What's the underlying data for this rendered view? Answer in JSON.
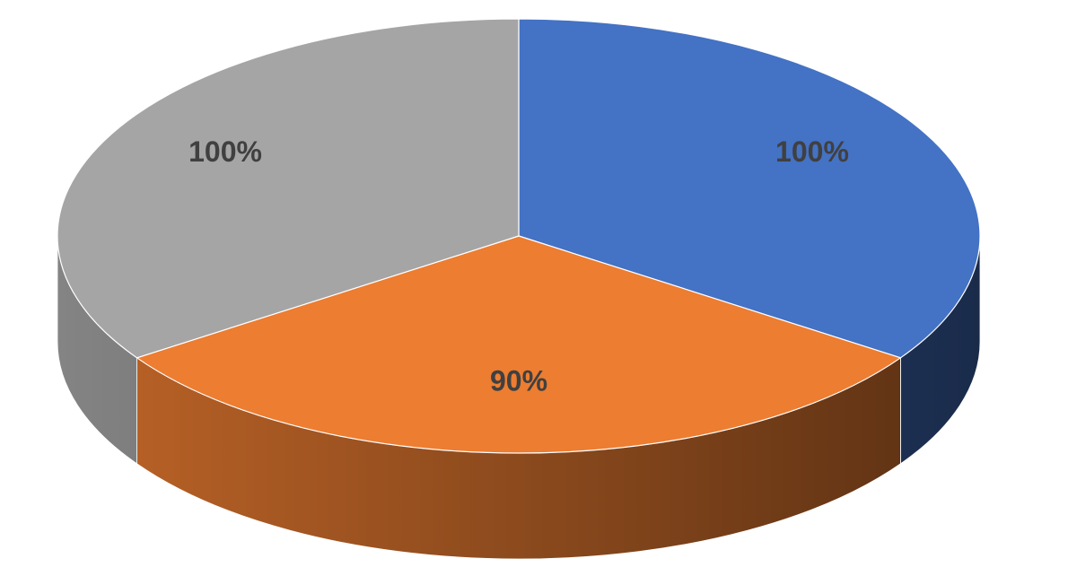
{
  "chart_data": {
    "type": "pie3d",
    "values": [
      100,
      90,
      100
    ],
    "value_labels": [
      "100%",
      "90%",
      "100%"
    ],
    "colors": [
      "#4472c4",
      "#ed7d31",
      "#a5a5a5"
    ]
  }
}
